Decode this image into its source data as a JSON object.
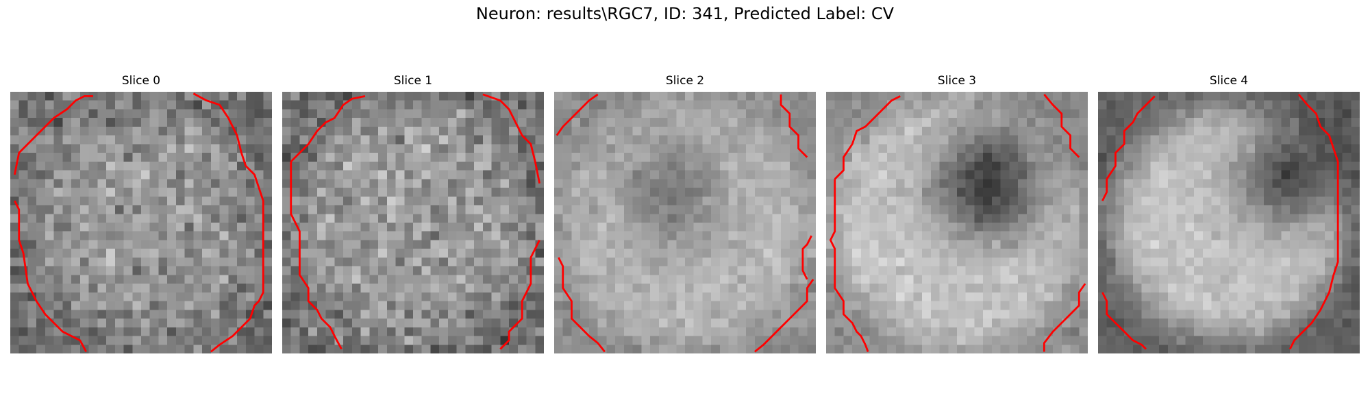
{
  "figure": {
    "title": "Neuron: results\\RGC7, ID: 341, Predicted Label: CV"
  },
  "panels": [
    {
      "title": "Slice 0"
    },
    {
      "title": "Slice 1"
    },
    {
      "title": "Slice 2"
    },
    {
      "title": "Slice 3"
    },
    {
      "title": "Slice 4"
    }
  ],
  "colors": {
    "contour": "#ff0000",
    "colormap": "gray"
  }
}
